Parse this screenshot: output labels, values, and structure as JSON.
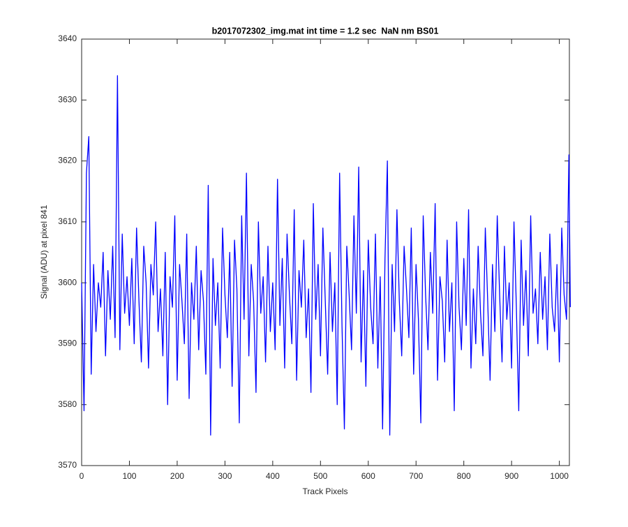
{
  "chart_data": {
    "type": "line",
    "title": "b2017072302_img.mat int time = 1.2 sec  NaN nm BS01",
    "x_label": "Track Pixels",
    "y_label": "Signal (ADU) at pixel 841",
    "xlim": [
      0,
      1021
    ],
    "ylim": [
      3570,
      3640
    ],
    "xticks": [
      0,
      100,
      200,
      300,
      400,
      500,
      600,
      700,
      800,
      900,
      1000
    ],
    "yticks": [
      3570,
      3580,
      3590,
      3600,
      3610,
      3620,
      3630,
      3640
    ],
    "grid": false,
    "series": [
      {
        "color": "#0000ff",
        "x": [
          0,
          5,
          10,
          15,
          20,
          25,
          30,
          35,
          40,
          45,
          50,
          55,
          60,
          65,
          70,
          75,
          80,
          85,
          90,
          95,
          100,
          105,
          110,
          115,
          120,
          125,
          130,
          135,
          140,
          145,
          150,
          155,
          160,
          165,
          170,
          175,
          180,
          185,
          190,
          195,
          200,
          205,
          210,
          215,
          220,
          225,
          230,
          235,
          240,
          245,
          250,
          255,
          260,
          265,
          270,
          275,
          280,
          285,
          290,
          295,
          300,
          305,
          310,
          315,
          320,
          325,
          330,
          335,
          340,
          345,
          350,
          355,
          360,
          365,
          370,
          375,
          380,
          385,
          390,
          395,
          400,
          405,
          410,
          415,
          420,
          425,
          430,
          435,
          440,
          445,
          450,
          455,
          460,
          465,
          470,
          475,
          480,
          485,
          490,
          495,
          500,
          505,
          510,
          515,
          520,
          525,
          530,
          535,
          540,
          545,
          550,
          555,
          560,
          565,
          570,
          575,
          580,
          585,
          590,
          595,
          600,
          605,
          610,
          615,
          620,
          625,
          630,
          635,
          640,
          645,
          650,
          655,
          660,
          665,
          670,
          675,
          680,
          685,
          690,
          695,
          700,
          705,
          710,
          715,
          720,
          725,
          730,
          735,
          740,
          745,
          750,
          755,
          760,
          765,
          770,
          775,
          780,
          785,
          790,
          795,
          800,
          805,
          810,
          815,
          820,
          825,
          830,
          835,
          840,
          845,
          850,
          855,
          860,
          865,
          870,
          875,
          880,
          885,
          890,
          895,
          900,
          905,
          910,
          915,
          920,
          925,
          930,
          935,
          940,
          945,
          950,
          955,
          960,
          965,
          970,
          975,
          980,
          985,
          990,
          995,
          1000,
          1005,
          1010,
          1015,
          1020,
          1023
        ],
        "values": [
          3600,
          3579,
          3618,
          3624,
          3585,
          3603,
          3592,
          3600,
          3596,
          3605,
          3588,
          3602,
          3594,
          3606,
          3591,
          3634,
          3589,
          3608,
          3595,
          3601,
          3593,
          3604,
          3590,
          3609,
          3597,
          3587,
          3606,
          3600,
          3586,
          3603,
          3598,
          3610,
          3592,
          3599,
          3588,
          3605,
          3580,
          3601,
          3596,
          3611,
          3584,
          3603,
          3597,
          3590,
          3608,
          3581,
          3600,
          3594,
          3606,
          3589,
          3602,
          3597,
          3585,
          3616,
          3575,
          3604,
          3593,
          3600,
          3586,
          3609,
          3598,
          3591,
          3605,
          3583,
          3607,
          3599,
          3577,
          3611,
          3594,
          3618,
          3588,
          3603,
          3597,
          3582,
          3610,
          3595,
          3601,
          3587,
          3606,
          3592,
          3600,
          3589,
          3617,
          3593,
          3604,
          3586,
          3608,
          3598,
          3590,
          3612,
          3584,
          3602,
          3596,
          3607,
          3591,
          3599,
          3582,
          3613,
          3594,
          3603,
          3588,
          3609,
          3597,
          3585,
          3605,
          3592,
          3600,
          3580,
          3618,
          3593,
          3576,
          3606,
          3598,
          3589,
          3611,
          3595,
          3619,
          3587,
          3602,
          3583,
          3607,
          3596,
          3590,
          3608,
          3586,
          3601,
          3576,
          3604,
          3620,
          3575,
          3603,
          3592,
          3612,
          3597,
          3588,
          3606,
          3599,
          3591,
          3609,
          3585,
          3603,
          3594,
          3577,
          3611,
          3598,
          3589,
          3605,
          3595,
          3613,
          3584,
          3601,
          3597,
          3587,
          3607,
          3592,
          3600,
          3579,
          3610,
          3596,
          3589,
          3604,
          3593,
          3612,
          3586,
          3599,
          3590,
          3606,
          3595,
          3588,
          3609,
          3597,
          3584,
          3603,
          3592,
          3611,
          3598,
          3587,
          3606,
          3594,
          3600,
          3586,
          3610,
          3596,
          3579,
          3607,
          3593,
          3602,
          3588,
          3611,
          3595,
          3599,
          3590,
          3605,
          3594,
          3601,
          3589,
          3608,
          3596,
          3592,
          3603,
          3587,
          3609,
          3598,
          3594,
          3621,
          3596
        ]
      }
    ]
  }
}
